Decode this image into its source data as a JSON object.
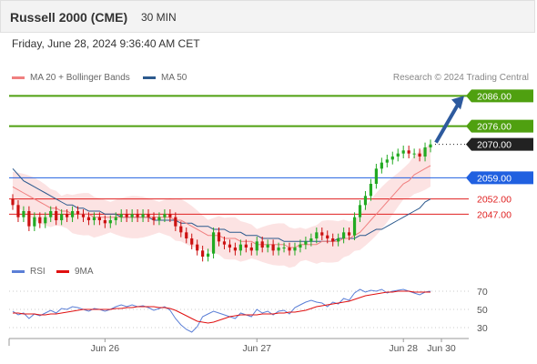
{
  "header": {
    "title": "Russell 2000 (CME)",
    "interval": "30 MIN"
  },
  "datetime": "Friday, June 28, 2024 9:36:40 AM CET",
  "legend": {
    "ma": {
      "label": "MA 20 + Bollinger Bands",
      "color": "#f08080"
    },
    "ma50": {
      "label": "MA 50",
      "color": "#2d5a8e"
    },
    "rsi": {
      "label": "RSI",
      "color": "#5b7fd6"
    },
    "rsi_ma": {
      "label": "9MA",
      "color": "#e01010"
    }
  },
  "credit": "Research © 2024 Trading Central",
  "chart_data": [
    {
      "type": "candlestick",
      "ylim": [
        2030,
        2090
      ],
      "x_labels": [
        "Jun 26",
        "Jun 27",
        "Jun 28",
        "Jun 30"
      ],
      "levels": [
        {
          "value": 2086.0,
          "label": "2086.00",
          "kind": "target",
          "color": "#4fa010"
        },
        {
          "value": 2076.0,
          "label": "2076.00",
          "kind": "resistance",
          "color": "#4fa010"
        },
        {
          "value": 2070.0,
          "label": "2070.00",
          "kind": "last",
          "color": "#222222"
        },
        {
          "value": 2059.0,
          "label": "2059.00",
          "kind": "pivot",
          "color": "#2060e0"
        },
        {
          "value": 2052.0,
          "label": "2052.00",
          "kind": "support",
          "color": "#e02020"
        },
        {
          "value": 2047.0,
          "label": "2047.00",
          "kind": "support",
          "color": "#e02020"
        }
      ],
      "close": [
        2050,
        2046,
        2048,
        2043,
        2046,
        2044,
        2046,
        2048,
        2045,
        2047,
        2046,
        2048,
        2047,
        2046,
        2045,
        2046,
        2045,
        2044,
        2045,
        2046,
        2047,
        2046,
        2047,
        2046,
        2047,
        2046,
        2045,
        2046,
        2047,
        2046,
        2043,
        2041,
        2039,
        2037,
        2035,
        2033,
        2034,
        2041,
        2038,
        2037,
        2036,
        2035,
        2037,
        2036,
        2035,
        2038,
        2036,
        2037,
        2035,
        2036,
        2036,
        2035,
        2036,
        2037,
        2038,
        2039,
        2041,
        2040,
        2039,
        2038,
        2039,
        2041,
        2040,
        2046,
        2050,
        2053,
        2057,
        2062,
        2064,
        2065,
        2066,
        2067,
        2068,
        2067,
        2067,
        2066,
        2069,
        2070
      ],
      "ma20": [
        2056,
        2055,
        2054,
        2053,
        2052,
        2051,
        2050,
        2049,
        2049,
        2048,
        2048,
        2047,
        2047,
        2047,
        2047,
        2046,
        2046,
        2046,
        2046,
        2046,
        2046,
        2046,
        2046,
        2046,
        2046,
        2046,
        2046,
        2046,
        2046,
        2046,
        2045,
        2045,
        2044,
        2043,
        2042,
        2041,
        2040,
        2040,
        2040,
        2039,
        2039,
        2039,
        2038,
        2038,
        2038,
        2037,
        2037,
        2037,
        2037,
        2037,
        2037,
        2036,
        2036,
        2037,
        2037,
        2037,
        2037,
        2038,
        2038,
        2038,
        2038,
        2039,
        2039,
        2040,
        2041,
        2043,
        2045,
        2047,
        2049,
        2051,
        2053,
        2055,
        2057,
        2058,
        2060,
        2061,
        2062,
        2063
      ],
      "ma50": [
        2062,
        2060,
        2058,
        2057,
        2056,
        2055,
        2054,
        2053,
        2052,
        2051,
        2050,
        2050,
        2049,
        2049,
        2048,
        2048,
        2048,
        2047,
        2047,
        2047,
        2046,
        2046,
        2046,
        2046,
        2046,
        2046,
        2045,
        2045,
        2045,
        2045,
        2045,
        2044,
        2044,
        2044,
        2043,
        2043,
        2043,
        2042,
        2042,
        2042,
        2041,
        2041,
        2041,
        2040,
        2040,
        2040,
        2039,
        2039,
        2039,
        2039,
        2038,
        2038,
        2038,
        2038,
        2038,
        2038,
        2038,
        2038,
        2038,
        2038,
        2039,
        2039,
        2039,
        2039,
        2040,
        2040,
        2041,
        2042,
        2042,
        2043,
        2044,
        2045,
        2046,
        2047,
        2048,
        2049,
        2051,
        2052
      ]
    },
    {
      "type": "line",
      "ylim": [
        20,
        80
      ],
      "y_ticks": [
        70,
        50,
        30
      ],
      "series": [
        {
          "name": "RSI",
          "values": [
            48,
            44,
            46,
            40,
            45,
            43,
            46,
            49,
            46,
            51,
            50,
            53,
            52,
            50,
            48,
            51,
            50,
            48,
            50,
            53,
            55,
            53,
            55,
            53,
            54,
            52,
            49,
            51,
            53,
            49,
            40,
            33,
            28,
            25,
            31,
            42,
            45,
            48,
            46,
            44,
            42,
            40,
            46,
            44,
            42,
            50,
            46,
            48,
            44,
            48,
            49,
            45,
            52,
            55,
            58,
            60,
            58,
            57,
            53,
            58,
            56,
            62,
            60,
            68,
            72,
            69,
            71,
            70,
            72,
            68,
            70,
            71,
            72,
            70,
            68,
            66,
            69,
            70
          ]
        },
        {
          "name": "9MA",
          "values": [
            46,
            46,
            45,
            45,
            45,
            44,
            44,
            45,
            45,
            46,
            47,
            48,
            49,
            50,
            50,
            50,
            50,
            50,
            50,
            51,
            51,
            52,
            52,
            53,
            53,
            53,
            53,
            52,
            52,
            51,
            49,
            46,
            43,
            40,
            37,
            36,
            35,
            36,
            38,
            40,
            42,
            43,
            44,
            44,
            44,
            44,
            45,
            45,
            45,
            46,
            46,
            47,
            47,
            48,
            49,
            51,
            53,
            54,
            55,
            56,
            57,
            58,
            59,
            61,
            63,
            65,
            66,
            67,
            68,
            69,
            69,
            70,
            70,
            70,
            69,
            69,
            69,
            69
          ]
        }
      ]
    }
  ]
}
